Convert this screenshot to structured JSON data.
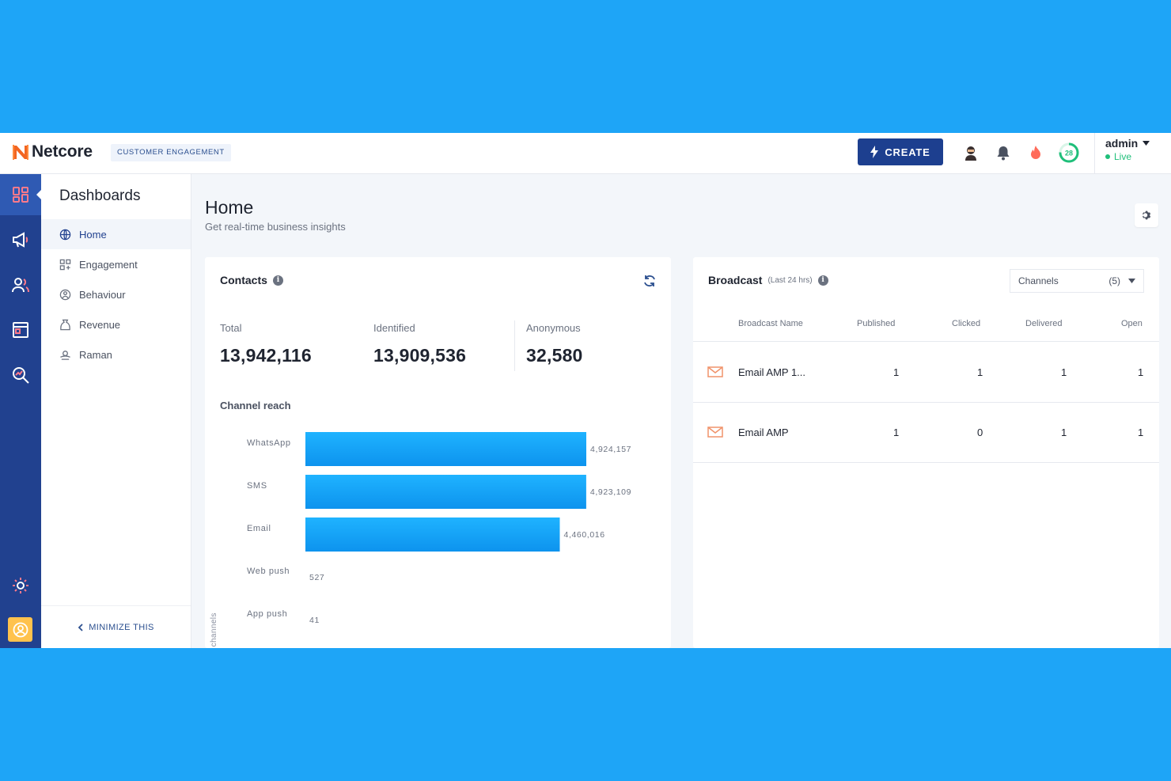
{
  "brand": {
    "name": "Netcore",
    "product": "CUSTOMER ENGAGEMENT"
  },
  "topbar": {
    "create_label": "CREATE",
    "user_name": "admin",
    "user_status": "Live",
    "progress_badge": "28"
  },
  "colors": {
    "accent": "#21418f",
    "brand_orange": "#f26522",
    "bar": "#12a3f5",
    "live": "#1fbf7a"
  },
  "rail": {
    "items": [
      "dashboard-icon",
      "campaign-icon",
      "contacts-icon",
      "reports-icon",
      "analyze-icon",
      "settings-icon"
    ]
  },
  "sidebar": {
    "title": "Dashboards",
    "items": [
      {
        "label": "Home",
        "icon": "globe-icon",
        "active": true
      },
      {
        "label": "Engagement",
        "icon": "engagement-icon",
        "active": false
      },
      {
        "label": "Behaviour",
        "icon": "behaviour-icon",
        "active": false
      },
      {
        "label": "Revenue",
        "icon": "revenue-icon",
        "active": false
      },
      {
        "label": "Raman",
        "icon": "custom-dashboard-icon",
        "active": false
      }
    ],
    "minimize_label": "MINIMIZE THIS"
  },
  "page": {
    "title": "Home",
    "subtitle": "Get real-time business insights"
  },
  "contacts": {
    "title": "Contacts",
    "stats": [
      {
        "label": "Total",
        "value": "13,942,116"
      },
      {
        "label": "Identified",
        "value": "13,909,536"
      },
      {
        "label": "Anonymous",
        "value": "32,580"
      }
    ],
    "reach_title": "Channel reach",
    "axis_label": "Push channels"
  },
  "chart_data": {
    "type": "bar",
    "orientation": "horizontal",
    "title": "Channel reach",
    "ylabel": "Push channels",
    "categories": [
      "WhatsApp",
      "SMS",
      "Email",
      "Web push",
      "App push"
    ],
    "values": [
      4924157,
      4923109,
      4460016,
      527,
      41
    ],
    "value_labels": [
      "4,924,157",
      "4,923,109",
      "4,460,016",
      "527",
      "41"
    ],
    "xlim": [
      0,
      4924157
    ]
  },
  "broadcast": {
    "title": "Broadcast",
    "subtitle": "(Last 24 hrs)",
    "select_label": "Channels",
    "select_count": "(5)",
    "columns": [
      "Broadcast Name",
      "Published",
      "Clicked",
      "Delivered",
      "Open"
    ],
    "rows": [
      {
        "name": "Email AMP 1...",
        "published": "1",
        "clicked": "1",
        "delivered": "1",
        "open": "1"
      },
      {
        "name": "Email AMP",
        "published": "1",
        "clicked": "0",
        "delivered": "1",
        "open": "1"
      }
    ]
  }
}
